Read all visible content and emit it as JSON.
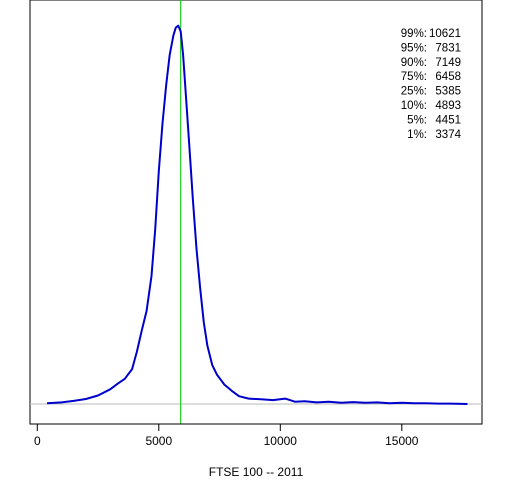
{
  "chart_data": {
    "type": "line",
    "title": "",
    "xlabel": "FTSE 100 -- 2011",
    "ylabel": "",
    "xlim": [
      -300,
      18300
    ],
    "ylim": [
      0,
      1.0
    ],
    "x_ticks": [
      "0",
      "5000",
      "10000",
      "15000"
    ],
    "x_tick_values": [
      0,
      5000,
      10000,
      15000
    ],
    "y_axis_shown": false,
    "grid": false,
    "legend": "none",
    "reference_line": {
      "x": 5900,
      "color": "#00cc00"
    },
    "baseline": {
      "y": 0,
      "color": "#bbbbbb"
    },
    "series": [
      {
        "color": "#0000cc",
        "x": [
          400,
          1000,
          1500,
          2000,
          2500,
          3000,
          3300,
          3600,
          3900,
          4100,
          4300,
          4500,
          4700,
          4850,
          5000,
          5150,
          5300,
          5450,
          5600,
          5700,
          5800,
          5900,
          6000,
          6100,
          6250,
          6400,
          6550,
          6700,
          6850,
          7000,
          7200,
          7400,
          7700,
          8000,
          8300,
          8700,
          9200,
          9700,
          10200,
          10600,
          11000,
          11500,
          12000,
          12500,
          13000,
          13500,
          14000,
          14500,
          15000,
          15500,
          16000,
          16500,
          17000,
          17700
        ],
        "y": [
          0.002,
          0.004,
          0.008,
          0.013,
          0.022,
          0.038,
          0.052,
          0.065,
          0.09,
          0.135,
          0.19,
          0.24,
          0.33,
          0.45,
          0.6,
          0.72,
          0.82,
          0.9,
          0.95,
          0.97,
          0.975,
          0.96,
          0.9,
          0.81,
          0.67,
          0.53,
          0.4,
          0.3,
          0.21,
          0.15,
          0.1,
          0.075,
          0.05,
          0.034,
          0.02,
          0.014,
          0.012,
          0.01,
          0.014,
          0.006,
          0.007,
          0.004,
          0.006,
          0.003,
          0.005,
          0.003,
          0.004,
          0.002,
          0.003,
          0.002,
          0.002,
          0.001,
          0.001,
          0.0
        ]
      }
    ],
    "annotations": [
      {
        "label": "99%:",
        "value": "10621"
      },
      {
        "label": "95%:",
        "value": "7831"
      },
      {
        "label": "90%:",
        "value": "7149"
      },
      {
        "label": "75%:",
        "value": "6458"
      },
      {
        "label": "25%:",
        "value": "5385"
      },
      {
        "label": "10%:",
        "value": "4893"
      },
      {
        "label": "5%:",
        "value": "4451"
      },
      {
        "label": "1%:",
        "value": "3374"
      }
    ]
  }
}
